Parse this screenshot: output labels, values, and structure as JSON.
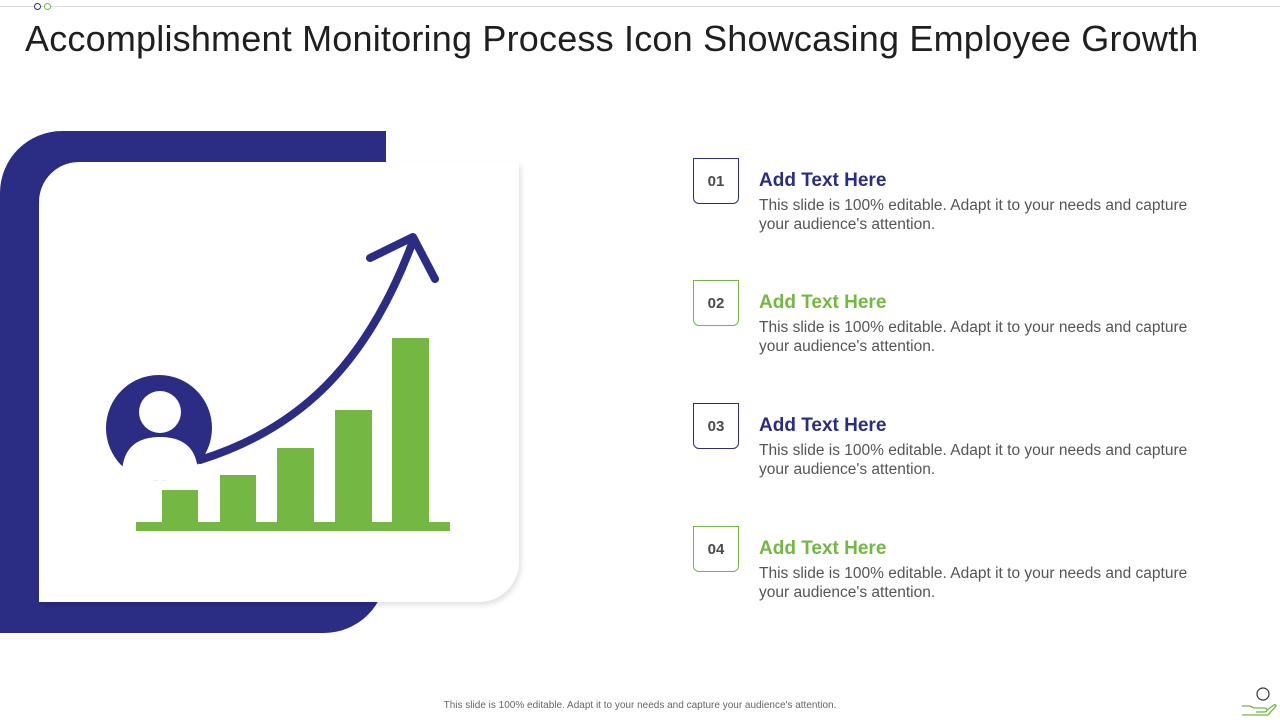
{
  "title": "Accomplishment Monitoring Process Icon Showcasing Employee Growth",
  "colors": {
    "primary_blue": "#2b2c84",
    "accent_green": "#74b843",
    "text_gray": "#555555"
  },
  "illustration": {
    "icon": "employee-growth-chart-icon"
  },
  "items": [
    {
      "number": "01",
      "heading": "Add Text Here",
      "body": "This slide is 100% editable. Adapt it to your needs and capture your audience's attention.",
      "color": "blue"
    },
    {
      "number": "02",
      "heading": "Add Text Here",
      "body": "This slide is 100% editable. Adapt it to your needs and capture your audience's attention.",
      "color": "green"
    },
    {
      "number": "03",
      "heading": "Add Text Here",
      "body": "This slide is 100% editable. Adapt it to your needs and capture your audience's attention.",
      "color": "blue"
    },
    {
      "number": "04",
      "heading": "Add Text Here",
      "body": "This slide is 100% editable. Adapt it to your needs and capture your audience's attention.",
      "color": "green"
    }
  ],
  "footer": "This slide is 100% editable. Adapt it to your needs and capture your audience's attention.",
  "corner_icon": "hand-holding-person-icon"
}
